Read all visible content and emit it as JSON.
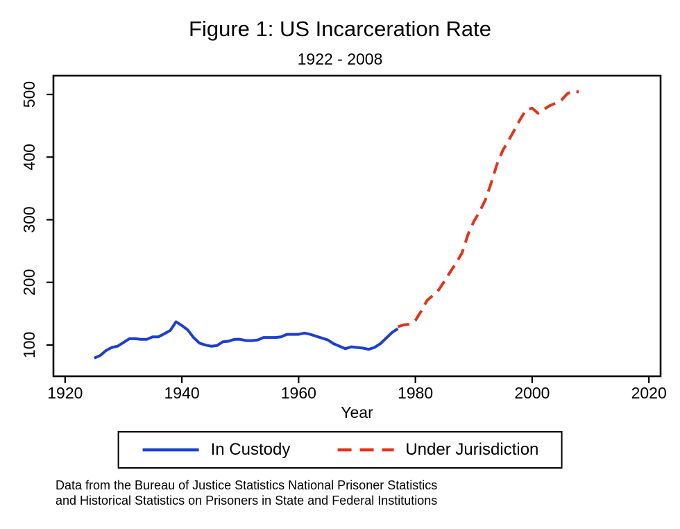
{
  "page": {
    "background": "#ffffff"
  },
  "title": "Figure 1: US Incarceration Rate",
  "subtitle": "1922 - 2008",
  "notes": {
    "line1": "Data from the Bureau of Justice Statistics National Prisoner Statistics",
    "line2": "and Historical Statistics on Prisoners in State and Federal Institutions"
  },
  "chart_data": {
    "type": "line",
    "title": "Figure 1: US Incarceration Rate",
    "subtitle": "1922 - 2008",
    "xlabel": "Year",
    "ylabel": "",
    "xlim": [
      1918,
      2022
    ],
    "ylim": [
      50,
      530
    ],
    "xticks": [
      1920,
      1940,
      1960,
      1980,
      2000,
      2020
    ],
    "yticks": [
      100,
      200,
      300,
      400,
      500
    ],
    "grid": false,
    "frame": true,
    "legend_position": "bottom",
    "axis_color": "#000000",
    "series": [
      {
        "name": "In Custody",
        "color": "#1c3fd0",
        "line_style": "solid",
        "x": [
          1925,
          1926,
          1927,
          1928,
          1929,
          1930,
          1931,
          1932,
          1933,
          1934,
          1935,
          1936,
          1937,
          1938,
          1939,
          1940,
          1941,
          1942,
          1943,
          1944,
          1945,
          1946,
          1947,
          1948,
          1949,
          1950,
          1951,
          1952,
          1953,
          1954,
          1955,
          1956,
          1957,
          1958,
          1959,
          1960,
          1961,
          1962,
          1963,
          1964,
          1965,
          1966,
          1967,
          1968,
          1969,
          1970,
          1971,
          1972,
          1973,
          1974,
          1975,
          1976,
          1977
        ],
        "y": [
          79,
          83,
          91,
          96,
          98,
          104,
          110,
          110,
          109,
          109,
          113,
          113,
          118,
          123,
          137,
          131,
          124,
          112,
          103,
          100,
          98,
          99,
          105,
          106,
          109,
          109,
          107,
          107,
          108,
          112,
          112,
          112,
          113,
          117,
          117,
          117,
          119,
          117,
          114,
          111,
          108,
          102,
          98,
          94,
          97,
          96,
          95,
          93,
          96,
          102,
          111,
          120,
          126
        ]
      },
      {
        "name": "Under Jurisdiction",
        "color": "#e2331b",
        "line_style": "dashed",
        "x": [
          1977,
          1978,
          1979,
          1980,
          1981,
          1982,
          1983,
          1984,
          1985,
          1986,
          1987,
          1988,
          1989,
          1990,
          1991,
          1992,
          1993,
          1994,
          1995,
          1996,
          1997,
          1998,
          1999,
          2000,
          2001,
          2002,
          2003,
          2004,
          2005,
          2006,
          2007,
          2008
        ],
        "y": [
          129,
          132,
          133,
          139,
          154,
          171,
          179,
          188,
          202,
          217,
          231,
          247,
          276,
          297,
          313,
          332,
          359,
          389,
          411,
          427,
          444,
          461,
          476,
          478,
          470,
          476,
          482,
          486,
          491,
          501,
          506,
          504
        ]
      }
    ]
  }
}
